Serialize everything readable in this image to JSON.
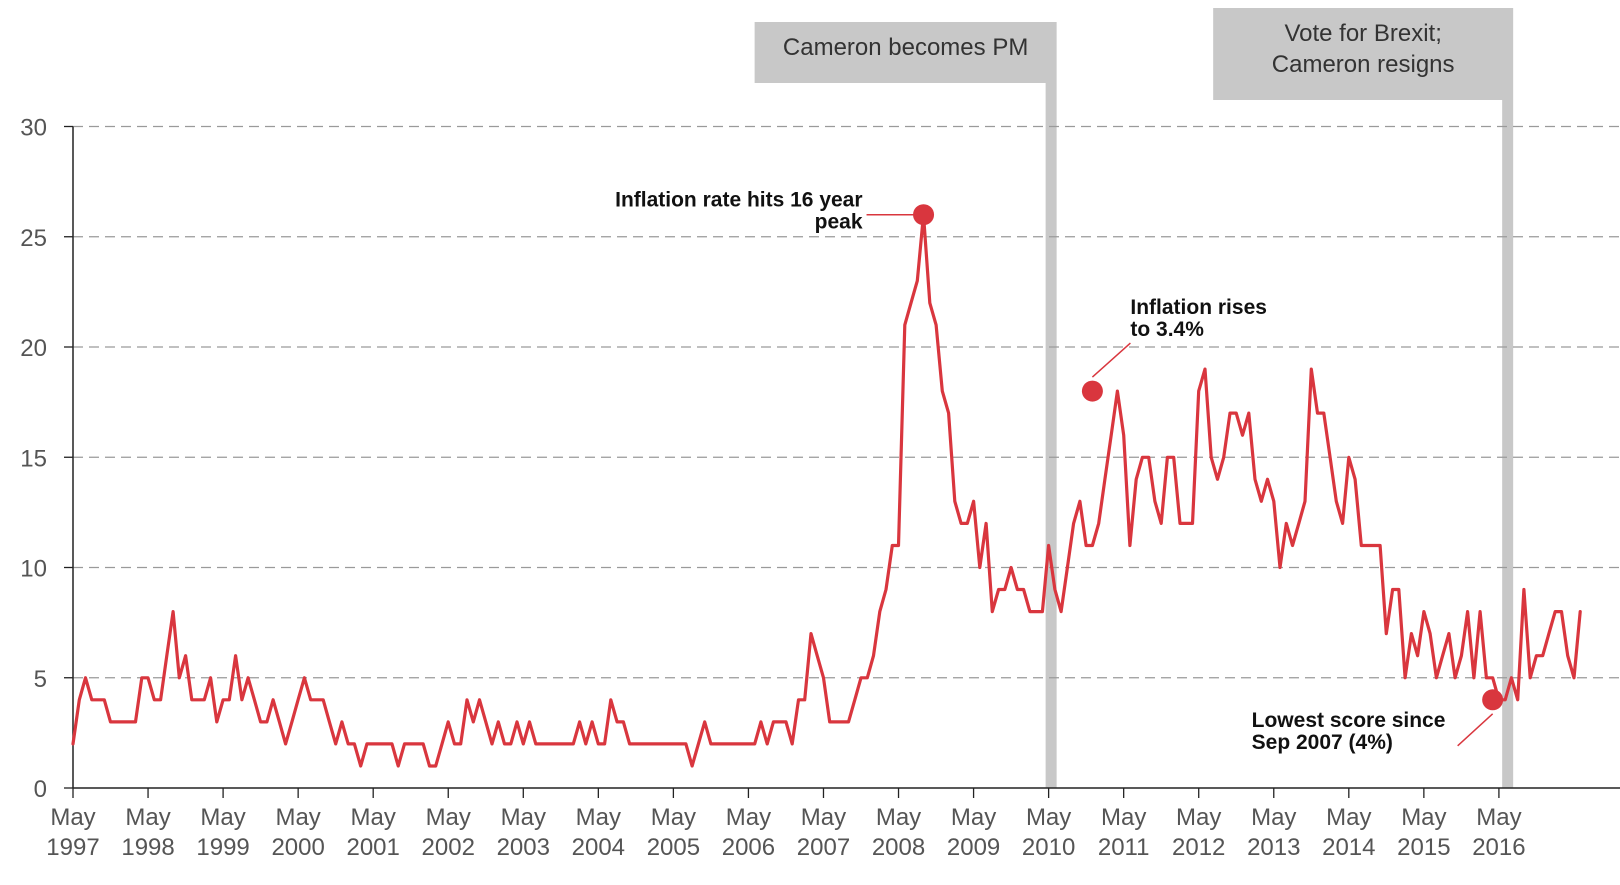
{
  "chart_data": {
    "type": "line",
    "title": "",
    "xlabel": "",
    "ylabel": "",
    "ylim": [
      0,
      30
    ],
    "yticks": [
      0,
      5,
      10,
      15,
      20,
      25,
      30
    ],
    "grid": "horizontal dashed",
    "line_color": "#d9363e",
    "event_color": "#c8c8c8",
    "xticks": [
      {
        "month": "May",
        "year": "1997"
      },
      {
        "month": "May",
        "year": "1998"
      },
      {
        "month": "May",
        "year": "1999"
      },
      {
        "month": "May",
        "year": "2000"
      },
      {
        "month": "May",
        "year": "2001"
      },
      {
        "month": "May",
        "year": "2002"
      },
      {
        "month": "May",
        "year": "2003"
      },
      {
        "month": "May",
        "year": "2004"
      },
      {
        "month": "May",
        "year": "2005"
      },
      {
        "month": "May",
        "year": "2006"
      },
      {
        "month": "May",
        "year": "2007"
      },
      {
        "month": "May",
        "year": "2008"
      },
      {
        "month": "May",
        "year": "2009"
      },
      {
        "month": "May",
        "year": "2010"
      },
      {
        "month": "May",
        "year": "2011"
      },
      {
        "month": "May",
        "year": "2012"
      },
      {
        "month": "May",
        "year": "2013"
      },
      {
        "month": "May",
        "year": "2014"
      },
      {
        "month": "May",
        "year": "2015"
      },
      {
        "month": "May",
        "year": "2016"
      }
    ],
    "x_start": "1997-05",
    "x_end": "2017-03",
    "series": [
      {
        "values": [
          2,
          4,
          5,
          4,
          4,
          4,
          3,
          3,
          3,
          3,
          3,
          5,
          5,
          4,
          4,
          6,
          8,
          5,
          6,
          4,
          4,
          4,
          5,
          3,
          4,
          4,
          6,
          4,
          5,
          4,
          3,
          3,
          4,
          3,
          2,
          3,
          4,
          5,
          4,
          4,
          4,
          3,
          2,
          3,
          2,
          2,
          1,
          2,
          2,
          2,
          2,
          2,
          1,
          2,
          2,
          2,
          2,
          1,
          1,
          2,
          3,
          2,
          2,
          4,
          3,
          4,
          3,
          2,
          3,
          2,
          2,
          3,
          2,
          3,
          2,
          2,
          2,
          2,
          2,
          2,
          2,
          3,
          2,
          3,
          2,
          2,
          4,
          3,
          3,
          2,
          2,
          2,
          2,
          2,
          2,
          2,
          2,
          2,
          2,
          1,
          2,
          3,
          2,
          2,
          2,
          2,
          2,
          2,
          2,
          2,
          3,
          2,
          3,
          3,
          3,
          2,
          4,
          4,
          7,
          6,
          5,
          3,
          3,
          3,
          3,
          4,
          5,
          5,
          6,
          8,
          9,
          11,
          11,
          21,
          22,
          23,
          26,
          22,
          21,
          18,
          17,
          13,
          12,
          12,
          13,
          10,
          12,
          8,
          9,
          9,
          10,
          9,
          9,
          8,
          8,
          8,
          11,
          9,
          8,
          10,
          12,
          13,
          11,
          11,
          12,
          14,
          16,
          18,
          16,
          11,
          14,
          15,
          15,
          13,
          12,
          15,
          15,
          12,
          12,
          12,
          18,
          19,
          15,
          14,
          15,
          17,
          17,
          16,
          17,
          14,
          13,
          14,
          13,
          10,
          12,
          11,
          12,
          13,
          19,
          17,
          17,
          15,
          13,
          12,
          15,
          14,
          11,
          11,
          11,
          11,
          7,
          9,
          9,
          5,
          7,
          6,
          8,
          7,
          5,
          6,
          7,
          5,
          6,
          8,
          5,
          8,
          5,
          5,
          4,
          4,
          5,
          4,
          9,
          5,
          6,
          6,
          7,
          8,
          8,
          6,
          5,
          8
        ]
      }
    ],
    "events": [
      {
        "label_lines": [
          "Cameron becomes PM"
        ],
        "date": "2010-05"
      },
      {
        "label_lines": [
          "Vote for Brexit;",
          "Cameron resigns"
        ],
        "date": "2016-06"
      }
    ],
    "annotations": [
      {
        "lines": [
          "Inflation rate hits 16 year",
          "peak"
        ],
        "date": "2008-09",
        "value": 26,
        "anchor": "end"
      },
      {
        "lines": [
          "Inflation rises",
          "to 3.4%"
        ],
        "date": "2010-12",
        "value": 18,
        "anchor": "start"
      },
      {
        "lines": [
          "Lowest score since",
          "Sep 2007 (4%)"
        ],
        "date": "2016-04",
        "value": 4,
        "anchor": "start"
      }
    ]
  }
}
